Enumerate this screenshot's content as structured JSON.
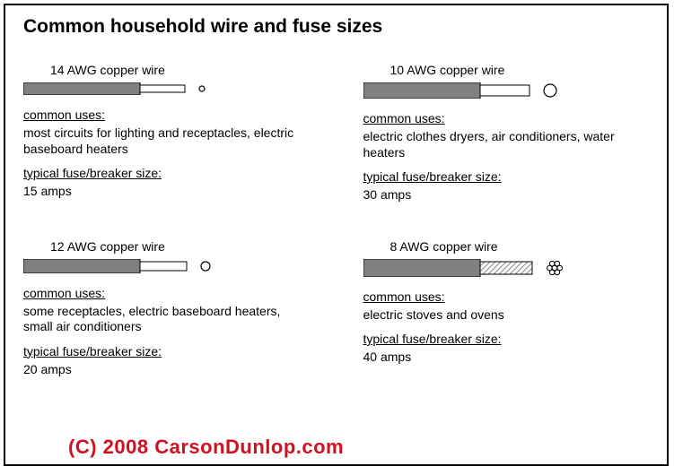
{
  "title": "Common household wire and fuse sizes",
  "labels": {
    "uses": "common uses:",
    "fuse": "typical fuse/breaker size:"
  },
  "colors": {
    "insulation": "#808080",
    "copper_fill": "#ffffff",
    "stroke": "#000000",
    "hatch": "#888888",
    "watermark": "#d01020"
  },
  "watermark": "(C) 2008 CarsonDunlop.com",
  "wires": [
    {
      "name": "14 AWG copper wire",
      "uses": "most circuits for lighting and receptacles, electric baseboard heaters",
      "fuse": "15 amps",
      "insul_len": 130,
      "insul_h": 14,
      "copper_len": 50,
      "copper_h": 8,
      "dot_r": 3,
      "cross_type": "circle"
    },
    {
      "name": "10 AWG copper wire",
      "uses": "electric clothes dryers, air conditioners, water heaters",
      "fuse": "30 amps",
      "insul_len": 130,
      "insul_h": 18,
      "copper_len": 55,
      "copper_h": 12,
      "dot_r": 7,
      "cross_type": "circle"
    },
    {
      "name": "12 AWG copper wire",
      "uses": "some receptacles, electric baseboard heaters, small air conditioners",
      "fuse": "20 amps",
      "insul_len": 130,
      "insul_h": 16,
      "copper_len": 52,
      "copper_h": 10,
      "dot_r": 5,
      "cross_type": "circle"
    },
    {
      "name": "8 AWG copper wire",
      "uses": "electric stoves and ovens",
      "fuse": "40 amps",
      "insul_len": 130,
      "insul_h": 20,
      "copper_len": 58,
      "copper_h": 14,
      "dot_r": 9,
      "cross_type": "stranded",
      "hatch": true
    }
  ]
}
